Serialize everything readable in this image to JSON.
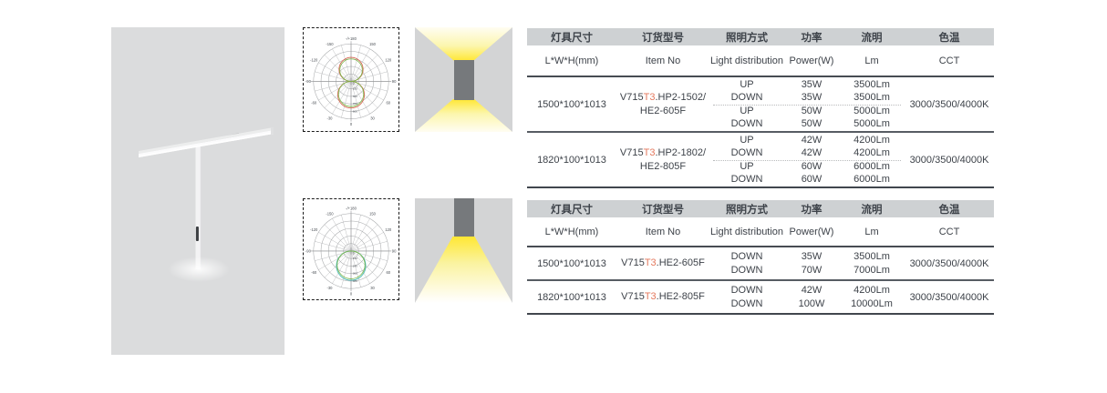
{
  "colors": {
    "panel_gray": "#dbdcdd",
    "table_header_bg": "#ced1d3",
    "text": "#3d4249",
    "model_highlight": "#e4795e",
    "beam_yellow": "#ffe733",
    "fixture_gray": "#76797c",
    "curve_red": "#d4604a",
    "curve_green": "#7ab648",
    "curve_teal": "#3fb3ae"
  },
  "diagrams": [
    {
      "name": "polar-updown",
      "angle_labels": [
        [
          180,
          "-/+180"
        ],
        [
          150,
          "150"
        ],
        [
          120,
          "120"
        ],
        [
          90,
          "90"
        ],
        [
          60,
          "60"
        ],
        [
          30,
          "30"
        ],
        [
          0,
          "0"
        ],
        [
          -30,
          "-30"
        ],
        [
          -60,
          "-60"
        ],
        [
          -90,
          "-90"
        ],
        [
          -120,
          "-120"
        ],
        [
          -150,
          "-150"
        ]
      ],
      "center_label": "0",
      "radial_labels": [
        "150",
        "300",
        "450",
        "600"
      ],
      "lobes": [
        {
          "dir": "up",
          "rings": 3.2,
          "color": "#d4604a"
        },
        {
          "dir": "up",
          "rings": 3.0,
          "color": "#7ab648"
        },
        {
          "dir": "down",
          "rings": 3.55,
          "color": "#d4604a"
        },
        {
          "dir": "down",
          "rings": 3.35,
          "color": "#7ab648"
        }
      ]
    },
    {
      "name": "polar-down",
      "angle_labels": [
        [
          180,
          "-/+180"
        ],
        [
          150,
          "150"
        ],
        [
          120,
          "120"
        ],
        [
          90,
          "90"
        ],
        [
          60,
          "60"
        ],
        [
          30,
          "30"
        ],
        [
          0,
          "0"
        ],
        [
          -30,
          "-30"
        ],
        [
          -60,
          "-60"
        ],
        [
          -90,
          "-90"
        ],
        [
          -120,
          "-120"
        ],
        [
          -150,
          "-150"
        ]
      ],
      "center_label": "0",
      "radial_labels": [
        "120",
        "240",
        "360",
        "480"
      ],
      "lobes": [
        {
          "dir": "down",
          "rings": 3.9,
          "color": "#3fb3ae"
        },
        {
          "dir": "down",
          "rings": 3.7,
          "color": "#7ab648"
        }
      ]
    }
  ],
  "tables": [
    {
      "headers_cn": [
        "灯具尺寸",
        "订货型号",
        "照明方式",
        "功率",
        "流明",
        "色温"
      ],
      "headers_en": [
        "L*W*H(mm)",
        "Item No",
        "Light distribution",
        "Power(W)",
        "Lm",
        "CCT"
      ],
      "groups": [
        {
          "size": "1500*100*1013",
          "model": {
            "p1": "V715",
            "hl": "T3",
            "p2": ".HP2-1502/",
            "line2": "HE2-605F"
          },
          "rows": [
            [
              "UP",
              "35W",
              "3500Lm"
            ],
            [
              "DOWN",
              "35W",
              "3500Lm"
            ],
            [
              "UP",
              "50W",
              "5000Lm"
            ],
            [
              "DOWN",
              "50W",
              "5000Lm"
            ]
          ],
          "cct": "3000/3500/4000K"
        },
        {
          "size": "1820*100*1013",
          "model": {
            "p1": "V715",
            "hl": "T3",
            "p2": ".HP2-1802/",
            "line2": "HE2-805F"
          },
          "rows": [
            [
              "UP",
              "42W",
              "4200Lm"
            ],
            [
              "DOWN",
              "42W",
              "4200Lm"
            ],
            [
              "UP",
              "60W",
              "6000Lm"
            ],
            [
              "DOWN",
              "60W",
              "6000Lm"
            ]
          ],
          "cct": "3000/3500/4000K"
        }
      ]
    },
    {
      "headers_cn": [
        "灯具尺寸",
        "订货型号",
        "照明方式",
        "功率",
        "流明",
        "色温"
      ],
      "headers_en": [
        "L*W*H(mm)",
        "Item No",
        "Light distribution",
        "Power(W)",
        "Lm",
        "CCT"
      ],
      "groups": [
        {
          "size": "1500*100*1013",
          "model": {
            "p1": "V715",
            "hl": "T3",
            "p2": ".HE2-605F"
          },
          "rows": [
            [
              "DOWN",
              "35W",
              "3500Lm"
            ],
            [
              "DOWN",
              "70W",
              "7000Lm"
            ]
          ],
          "cct": "3000/3500/4000K"
        },
        {
          "size": "1820*100*1013",
          "model": {
            "p1": "V715",
            "hl": "T3",
            "p2": ".HE2-805F"
          },
          "rows": [
            [
              "DOWN",
              "42W",
              "4200Lm"
            ],
            [
              "DOWN",
              "100W",
              "10000Lm"
            ]
          ],
          "cct": "3000/3500/4000K"
        }
      ]
    }
  ]
}
